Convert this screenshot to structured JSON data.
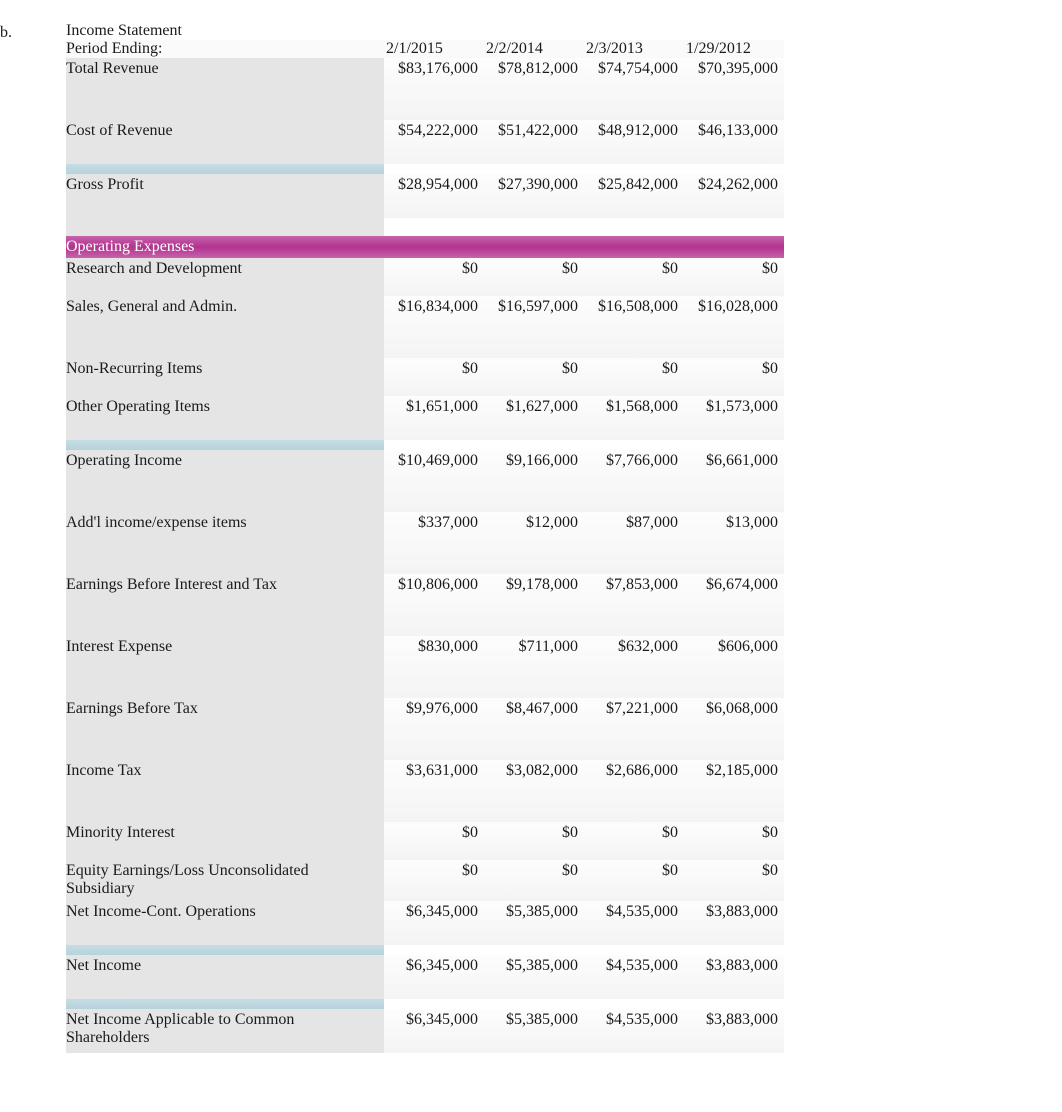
{
  "marker": "b.",
  "title": "Income Statement",
  "periodLabel": "Period Ending:",
  "periods": [
    "2/1/2015",
    "2/2/2014",
    "2/3/2013",
    "1/29/2012"
  ],
  "sectionHeader": "Operating Expenses",
  "rows": [
    {
      "key": "total_revenue",
      "label": "Total Revenue",
      "vals": [
        "$83,176,000",
        "$78,812,000",
        "$74,754,000",
        "$70,395,000"
      ],
      "h": "tall",
      "blueBefore": false
    },
    {
      "key": "cost_of_revenue",
      "label": "Cost of Revenue",
      "vals": [
        "$54,222,000",
        "$51,422,000",
        "$48,912,000",
        "$46,133,000"
      ],
      "h": "tall40",
      "blueBefore": false
    },
    {
      "key": "gross_profit",
      "label": "Gross Profit",
      "vals": [
        "$28,954,000",
        "$27,390,000",
        "$25,842,000",
        "$24,262,000"
      ],
      "h": "tall40",
      "blueBefore": true
    },
    {
      "key": "rnd",
      "label": "Research and Development",
      "vals": [
        "$0",
        "$0",
        "$0",
        "$0"
      ],
      "h": "short",
      "blueBefore": false,
      "afterSection": true
    },
    {
      "key": "sga",
      "label": "Sales, General and Admin.",
      "vals": [
        "$16,834,000",
        "$16,597,000",
        "$16,508,000",
        "$16,028,000"
      ],
      "h": "tall",
      "blueBefore": false
    },
    {
      "key": "non_recurring",
      "label": "Non-Recurring Items",
      "vals": [
        "$0",
        "$0",
        "$0",
        "$0"
      ],
      "h": "short",
      "blueBefore": false
    },
    {
      "key": "other_op",
      "label": "Other Operating Items",
      "vals": [
        "$1,651,000",
        "$1,627,000",
        "$1,568,000",
        "$1,573,000"
      ],
      "h": "tall40",
      "blueBefore": false
    },
    {
      "key": "op_income",
      "label": "Operating Income",
      "vals": [
        "$10,469,000",
        "$9,166,000",
        "$7,766,000",
        "$6,661,000"
      ],
      "h": "tall",
      "blueBefore": true
    },
    {
      "key": "addl",
      "label": "Add'l income/expense items",
      "vals": [
        "$337,000",
        "$12,000",
        "$87,000",
        "$13,000"
      ],
      "h": "tall",
      "blueBefore": false
    },
    {
      "key": "ebit",
      "label": "Earnings Before Interest and Tax",
      "vals": [
        "$10,806,000",
        "$9,178,000",
        "$7,853,000",
        "$6,674,000"
      ],
      "h": "tall",
      "blueBefore": false
    },
    {
      "key": "interest_exp",
      "label": "Interest Expense",
      "vals": [
        "$830,000",
        "$711,000",
        "$632,000",
        "$606,000"
      ],
      "h": "tall",
      "blueBefore": false
    },
    {
      "key": "ebt",
      "label": "Earnings Before Tax",
      "vals": [
        "$9,976,000",
        "$8,467,000",
        "$7,221,000",
        "$6,068,000"
      ],
      "h": "tall",
      "blueBefore": false
    },
    {
      "key": "income_tax",
      "label": "Income Tax",
      "vals": [
        "$3,631,000",
        "$3,082,000",
        "$2,686,000",
        "$2,185,000"
      ],
      "h": "tall",
      "blueBefore": false
    },
    {
      "key": "minority",
      "label": "Minority Interest",
      "vals": [
        "$0",
        "$0",
        "$0",
        "$0"
      ],
      "h": "short",
      "blueBefore": false
    },
    {
      "key": "equity_earn",
      "label": "Equity Earnings/Loss Unconsolidated Subsidiary",
      "vals": [
        "$0",
        "$0",
        "$0",
        "$0"
      ],
      "h": "short",
      "blueBefore": false
    },
    {
      "key": "ni_cont",
      "label": "Net Income-Cont. Operations",
      "vals": [
        "$6,345,000",
        "$5,385,000",
        "$4,535,000",
        "$3,883,000"
      ],
      "h": "tall40",
      "blueBefore": false
    },
    {
      "key": "net_income",
      "label": "Net Income",
      "vals": [
        "$6,345,000",
        "$5,385,000",
        "$4,535,000",
        "$3,883,000"
      ],
      "h": "tall40",
      "blueBefore": true
    },
    {
      "key": "ni_common",
      "label": "Net Income Applicable to Common Shareholders",
      "vals": [
        "$6,345,000",
        "$5,385,000",
        "$4,535,000",
        "$3,883,000"
      ],
      "h": "tall40",
      "blueBefore": true
    }
  ],
  "colors": {
    "labelBg": "#e5e5e5",
    "blueSep": "#b5d3dc",
    "sectionBg": "#b2338f",
    "text": "#1a1a1a"
  }
}
